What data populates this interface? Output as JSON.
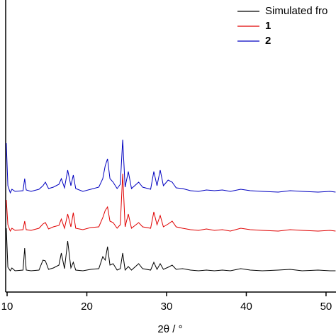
{
  "chart_data": {
    "type": "line",
    "x_label": "2θ / °",
    "x": [
      9.9,
      10.1,
      10.4,
      10.6,
      11,
      12.0,
      12.2,
      12.4,
      13,
      14,
      14.5,
      14.8,
      15.2,
      15.8,
      16.5,
      16.8,
      17.2,
      17.6,
      18.0,
      18.3,
      18.6,
      19.5,
      20.5,
      21.5,
      22.0,
      22.3,
      22.6,
      22.9,
      23.3,
      23.8,
      24.2,
      24.5,
      24.8,
      25.2,
      25.6,
      26.5,
      27.0,
      28.0,
      28.4,
      28.8,
      29.2,
      29.6,
      30.2,
      30.7,
      31.2,
      32,
      33,
      34,
      35,
      36,
      37,
      38,
      39.3,
      40.5,
      42,
      44,
      45.5,
      47,
      49,
      50.5,
      51.2
    ],
    "series": [
      {
        "name": "Simulated fro",
        "color": "#000000",
        "values": [
          90,
          35,
          30,
          34,
          30,
          31,
          62,
          31,
          30,
          31,
          45,
          44,
          32,
          34,
          38,
          55,
          33,
          72,
          34,
          42,
          31,
          30,
          32,
          33,
          50,
          45,
          64,
          38,
          40,
          31,
          33,
          55,
          31,
          36,
          31,
          40,
          33,
          31,
          42,
          32,
          40,
          32,
          35,
          38,
          32,
          33,
          31,
          30,
          31,
          30,
          31,
          30,
          33,
          31,
          30,
          31,
          32,
          30,
          31,
          30,
          30
        ]
      },
      {
        "name": "1",
        "color": "#e00000",
        "values": [
          130,
          95,
          86,
          90,
          87,
          88,
          100,
          88,
          87,
          90,
          96,
          98,
          89,
          92,
          94,
          103,
          90,
          110,
          92,
          112,
          90,
          88,
          91,
          92,
          105,
          115,
          120,
          100,
          98,
          90,
          95,
          167,
          92,
          110,
          90,
          98,
          92,
          90,
          113,
          95,
          108,
          92,
          96,
          100,
          92,
          90,
          88,
          87,
          89,
          87,
          88,
          86,
          90,
          88,
          87,
          86,
          88,
          87,
          86,
          87,
          86
        ]
      },
      {
        "name": "2",
        "color": "#0000c0",
        "values": [
          210,
          150,
          140,
          145,
          142,
          143,
          160,
          144,
          142,
          145,
          150,
          155,
          146,
          148,
          152,
          160,
          147,
          172,
          150,
          165,
          146,
          142,
          145,
          148,
          160,
          178,
          188,
          160,
          155,
          146,
          152,
          215,
          148,
          170,
          146,
          155,
          148,
          145,
          170,
          150,
          172,
          150,
          158,
          155,
          147,
          146,
          143,
          142,
          144,
          143,
          144,
          142,
          145,
          143,
          142,
          141,
          143,
          142,
          141,
          142,
          141
        ]
      }
    ],
    "xlim": [
      9.82,
      51.25
    ],
    "xticks": [
      10,
      20,
      30,
      40,
      50
    ],
    "ylim": [
      0,
      412
    ]
  }
}
